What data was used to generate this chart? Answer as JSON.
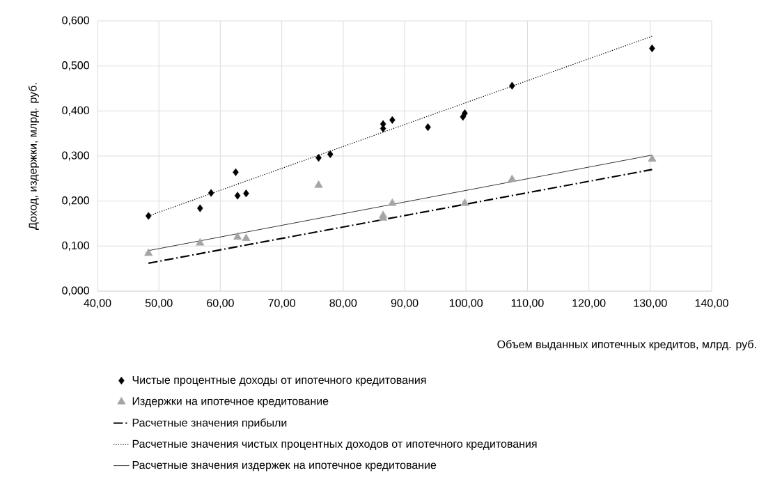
{
  "chart_data": {
    "type": "scatter",
    "xlabel": "Объем выданных ипотечных кредитов, млрд. руб.",
    "ylabel": "Доход, издержки, млрд. руб.",
    "xlim": [
      40,
      140
    ],
    "xticks": [
      {
        "value": 40,
        "label": "40,00"
      },
      {
        "value": 50,
        "label": "50,00"
      },
      {
        "value": 60,
        "label": "60,00"
      },
      {
        "value": 70,
        "label": "70,00"
      },
      {
        "value": 80,
        "label": "80,00"
      },
      {
        "value": 90,
        "label": "90,00"
      },
      {
        "value": 100,
        "label": "100,00"
      },
      {
        "value": 110,
        "label": "110,00"
      },
      {
        "value": 120,
        "label": "120,00"
      },
      {
        "value": 130,
        "label": "130,00"
      },
      {
        "value": 140,
        "label": "140,00"
      }
    ],
    "ylim": [
      0,
      0.6
    ],
    "yticks": [
      {
        "value": 0,
        "label": "0,000"
      },
      {
        "value": 0.1,
        "label": "0,100"
      },
      {
        "value": 0.2,
        "label": "0,200"
      },
      {
        "value": 0.3,
        "label": "0,300"
      },
      {
        "value": 0.4,
        "label": "0,400"
      },
      {
        "value": 0.5,
        "label": "0,500"
      },
      {
        "value": 0.6,
        "label": "0,600"
      }
    ],
    "grid": true,
    "legend": "bottom",
    "series": [
      {
        "name": "Чистые процентные доходы от ипотечного кредитования",
        "marker": "diamond",
        "color": "#000000",
        "x": [
          48.3,
          56.7,
          58.5,
          62.5,
          62.8,
          64.2,
          76.0,
          77.9,
          86.5,
          86.5,
          88.0,
          93.8,
          99.5,
          99.8,
          107.5,
          130.3
        ],
        "values": [
          0.167,
          0.184,
          0.218,
          0.264,
          0.212,
          0.217,
          0.296,
          0.304,
          0.361,
          0.371,
          0.38,
          0.364,
          0.387,
          0.395,
          0.456,
          0.539
        ]
      },
      {
        "name": "Издержки на ипотечное кредитование",
        "marker": "triangle",
        "color": "#a5a5a5",
        "x": [
          48.3,
          56.7,
          62.8,
          64.2,
          76.0,
          86.5,
          86.5,
          88.0,
          99.8,
          107.5,
          130.3
        ],
        "values": [
          0.084,
          0.107,
          0.12,
          0.117,
          0.235,
          0.162,
          0.168,
          0.195,
          0.195,
          0.248,
          0.293
        ]
      },
      {
        "name": "Расчетные значения прибыли",
        "type": "line",
        "line_style": "dashed",
        "color": "#000000",
        "x": [
          48.3,
          130.3
        ],
        "values": [
          0.062,
          0.27
        ]
      },
      {
        "name": "Расчетные значения чистых процентных доходов от ипотечного кредитования",
        "type": "line",
        "line_style": "dotted",
        "color": "#000000",
        "x": [
          48.3,
          130.3
        ],
        "values": [
          0.167,
          0.566
        ]
      },
      {
        "name": "Расчетные значения издержек на ипотечное кредитование",
        "type": "line",
        "line_style": "solid",
        "color": "#000000",
        "x": [
          48.3,
          130.3
        ],
        "values": [
          0.09,
          0.302
        ]
      }
    ]
  }
}
